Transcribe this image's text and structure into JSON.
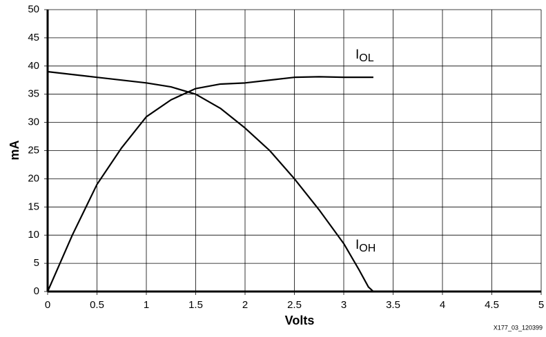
{
  "chart_data": {
    "type": "line",
    "xlabel": "Volts",
    "ylabel": "mA",
    "xlim": [
      0,
      5
    ],
    "xticks": [
      0,
      0.5,
      1,
      1.5,
      2,
      2.5,
      3,
      3.5,
      4,
      4.5,
      5
    ],
    "ylim": [
      0,
      50
    ],
    "yticks": [
      0,
      5,
      10,
      15,
      20,
      25,
      30,
      35,
      40,
      45,
      50
    ],
    "grid": true,
    "footnote": "X177_03_120399",
    "series": [
      {
        "name": "I",
        "name_subscript": "OL",
        "color": "#000000",
        "x": [
          0,
          0.25,
          0.5,
          0.75,
          1,
          1.25,
          1.5,
          1.75,
          2,
          2.25,
          2.5,
          2.75,
          3,
          3.3
        ],
        "values": [
          0,
          10,
          19,
          25.5,
          31,
          34,
          36,
          36.8,
          37,
          37.5,
          38,
          38.1,
          38,
          38
        ]
      },
      {
        "name": "I",
        "name_subscript": "OH",
        "color": "#000000",
        "x": [
          0,
          0.5,
          1,
          1.25,
          1.5,
          1.75,
          2,
          2.25,
          2.5,
          2.75,
          3,
          3.15,
          3.25,
          3.3
        ],
        "values": [
          39,
          38,
          37,
          36.3,
          35,
          32.5,
          29,
          25,
          20,
          14.5,
          8.5,
          4,
          0.8,
          0
        ]
      }
    ]
  }
}
